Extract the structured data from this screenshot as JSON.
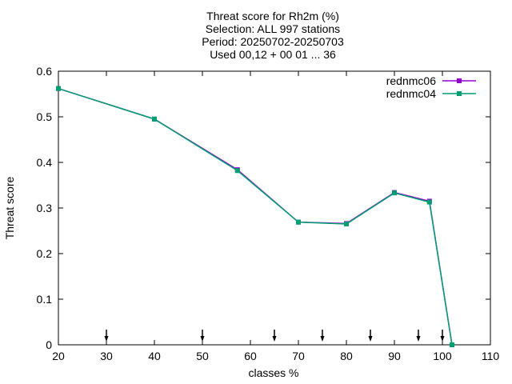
{
  "chart_data": {
    "type": "line",
    "title_lines": [
      "Threat score  for Rh2m (%)",
      "Selection: ALL    997 stations",
      "Period: 20250702-20250703",
      "Used 00,12 + 00 01 ... 36"
    ],
    "xlabel": "classes %",
    "ylabel": "Threat score",
    "xlim": [
      20,
      110
    ],
    "ylim": [
      0,
      0.6
    ],
    "xticks": [
      20,
      30,
      40,
      50,
      60,
      70,
      80,
      90,
      100,
      110
    ],
    "yticks": [
      0,
      0.1,
      0.2,
      0.3,
      0.4,
      0.5,
      0.6
    ],
    "ytick_labels": [
      "0",
      "0.1",
      "0.2",
      "0.3",
      "0.4",
      "0.5",
      "0.6"
    ],
    "legend_position": "top-right",
    "series": [
      {
        "name": "rednmc06",
        "color": "#9400d3",
        "x": [
          20,
          40,
          57.3,
          70,
          80,
          90,
          97.3,
          102
        ],
        "y": [
          0.562,
          0.495,
          0.384,
          0.269,
          0.266,
          0.334,
          0.315,
          0
        ]
      },
      {
        "name": "rednmc04",
        "color": "#009e73",
        "x": [
          20,
          40,
          57.3,
          70,
          80,
          90,
          97.3,
          102
        ],
        "y": [
          0.562,
          0.495,
          0.382,
          0.269,
          0.265,
          0.333,
          0.313,
          0
        ]
      }
    ],
    "threshold_arrows_x": [
      30,
      50,
      65,
      75,
      85,
      95,
      100
    ]
  }
}
